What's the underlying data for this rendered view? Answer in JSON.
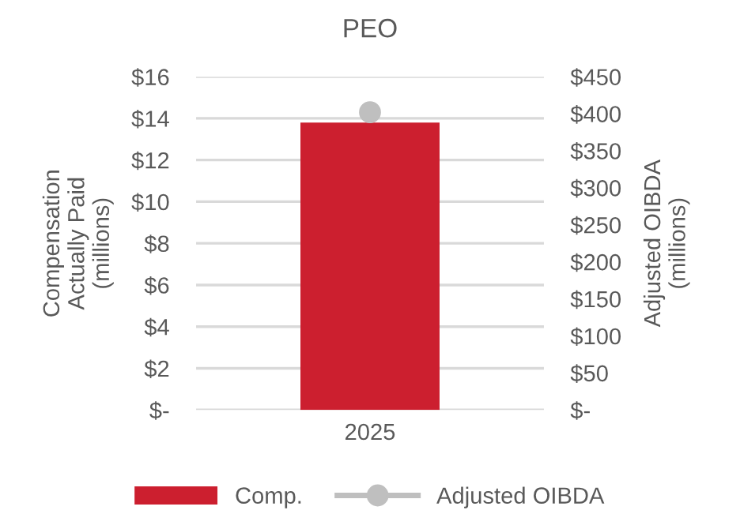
{
  "chart_data": {
    "type": "bar",
    "title": "PEO",
    "ylabel": "Compensation\nActually Paid\n(millions)",
    "y2label": "Adjusted OIBDA\n(millions)",
    "categories": [
      "2025"
    ],
    "series": [
      {
        "name": "Comp.",
        "color": "#cc1f2f",
        "values": [
          13.8
        ]
      },
      {
        "name": "Adjusted OIBDA",
        "type": "line",
        "axis": "y2",
        "color": "#bfbfbf",
        "values": [
          402
        ],
        "marker": "circle"
      }
    ],
    "ylim": [
      0,
      16
    ],
    "yticks": [
      {
        "value": 0,
        "label": "$-"
      },
      {
        "value": 2,
        "label": "$2"
      },
      {
        "value": 4,
        "label": "$4"
      },
      {
        "value": 6,
        "label": "$6"
      },
      {
        "value": 8,
        "label": "$8"
      },
      {
        "value": 10,
        "label": "$10"
      },
      {
        "value": 12,
        "label": "$12"
      },
      {
        "value": 14,
        "label": "$14"
      },
      {
        "value": 16,
        "label": "$16"
      }
    ],
    "y2lim": [
      0,
      450
    ],
    "y2ticks": [
      {
        "value": 0,
        "label": "$-"
      },
      {
        "value": 50,
        "label": "$50"
      },
      {
        "value": 100,
        "label": "$100"
      },
      {
        "value": 150,
        "label": "$150"
      },
      {
        "value": 200,
        "label": "$200"
      },
      {
        "value": 250,
        "label": "$250"
      },
      {
        "value": 300,
        "label": "$300"
      },
      {
        "value": 350,
        "label": "$350"
      },
      {
        "value": 400,
        "label": "$400"
      },
      {
        "value": 450,
        "label": "$450"
      }
    ],
    "grid": "y",
    "legend": "bottom"
  }
}
